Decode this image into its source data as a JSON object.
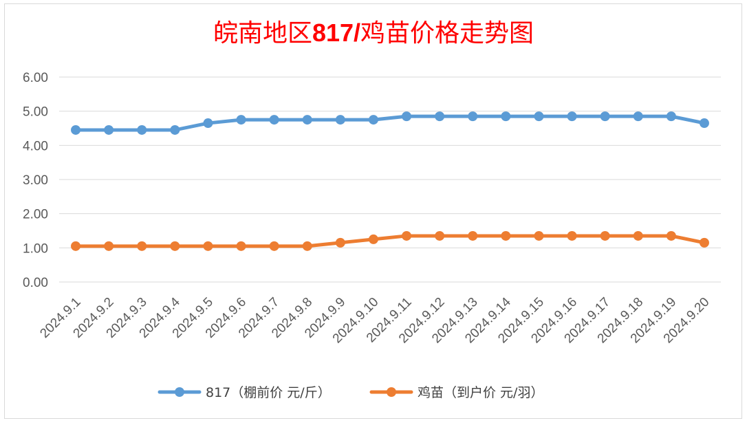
{
  "chart_data": {
    "type": "line",
    "title_cn": "皖南地区",
    "title_num": "817/",
    "title_tail": "鸡苗价格走势图",
    "categories": [
      "2024.9.1",
      "2024.9.2",
      "2024.9.3",
      "2024.9.4",
      "2024.9.5",
      "2024.9.6",
      "2024.9.7",
      "2024.9.8",
      "2024.9.9",
      "2024.9.10",
      "2024.9.11",
      "2024.9.12",
      "2024.9.13",
      "2024.9.14",
      "2024.9.15",
      "2024.9.16",
      "2024.9.17",
      "2024.9.18",
      "2024.9.19",
      "2024.9.20"
    ],
    "y_ticks": [
      "0.00",
      "1.00",
      "2.00",
      "3.00",
      "4.00",
      "5.00",
      "6.00"
    ],
    "ylim": [
      0,
      6
    ],
    "grid": true,
    "legend_position": "bottom",
    "series": [
      {
        "name": "817（棚前价 元/斤）",
        "color": "#5b9bd5",
        "values": [
          4.45,
          4.45,
          4.45,
          4.45,
          4.65,
          4.75,
          4.75,
          4.75,
          4.75,
          4.75,
          4.85,
          4.85,
          4.85,
          4.85,
          4.85,
          4.85,
          4.85,
          4.85,
          4.85,
          4.65
        ]
      },
      {
        "name": "鸡苗（到户价 元/羽）",
        "color": "#ed7d31",
        "values": [
          1.05,
          1.05,
          1.05,
          1.05,
          1.05,
          1.05,
          1.05,
          1.05,
          1.15,
          1.25,
          1.35,
          1.35,
          1.35,
          1.35,
          1.35,
          1.35,
          1.35,
          1.35,
          1.35,
          1.15
        ]
      }
    ]
  }
}
